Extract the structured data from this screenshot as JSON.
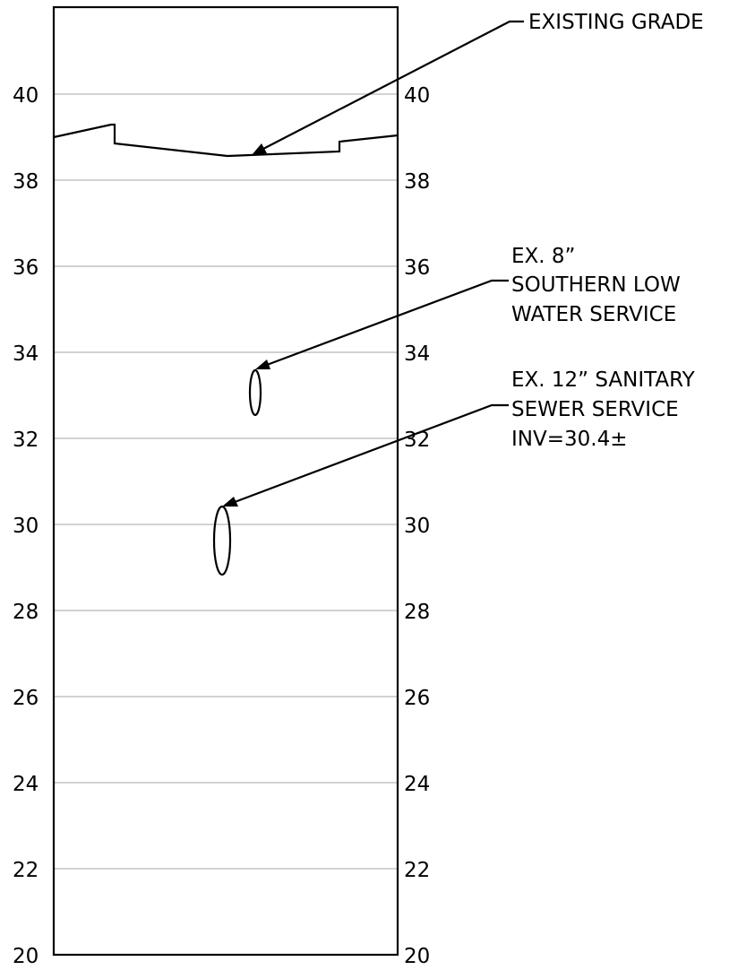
{
  "axis": {
    "left_ticks": [
      "40",
      "38",
      "36",
      "34",
      "32",
      "30",
      "28",
      "26",
      "24",
      "22",
      "20"
    ],
    "right_ticks": [
      "40",
      "38",
      "36",
      "34",
      "32",
      "30",
      "28",
      "26",
      "24",
      "22",
      "20"
    ]
  },
  "callouts": {
    "existing_grade": [
      "EXISTING GRADE"
    ],
    "water_service": [
      "EX. 8”",
      "SOUTHERN LOW",
      "WATER SERVICE"
    ],
    "sewer_service": [
      "EX. 12” SANITARY",
      "SEWER SERVICE",
      "INV=30.4±"
    ]
  }
}
